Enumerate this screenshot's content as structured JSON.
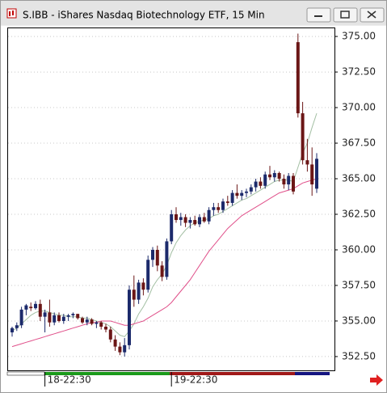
{
  "chart_data": {
    "type": "candlestick",
    "title": "S.IBB - iShares Nasdaq Biotechnology ETF, 15 Min",
    "categories": [
      null,
      null,
      null,
      null,
      null,
      null,
      null,
      "18-22:30",
      null,
      null,
      null,
      null,
      null,
      null,
      null,
      null,
      null,
      null,
      null,
      null,
      null,
      null,
      null,
      null,
      null,
      null,
      null,
      null,
      null,
      null,
      null,
      null,
      null,
      null,
      "19-22:30",
      null,
      null,
      null,
      null,
      null,
      null,
      null,
      null,
      null,
      null,
      null,
      null,
      null,
      null,
      null,
      null,
      null,
      null,
      null,
      null,
      null,
      null,
      null,
      null,
      null,
      null,
      null,
      null,
      null,
      null,
      null
    ],
    "open": [
      354.2,
      354.5,
      354.7,
      355.8,
      356.0,
      355.9,
      356.2,
      355.3,
      355.6,
      354.9,
      355.4,
      355.0,
      355.3,
      355.4,
      355.5,
      355.2,
      354.9,
      355.1,
      354.8,
      354.9,
      354.6,
      354.4,
      353.7,
      353.2,
      352.8,
      353.3,
      357.2,
      356.5,
      357.7,
      357.2,
      359.3,
      360.0,
      358.9,
      358.1,
      360.6,
      362.5,
      362.1,
      362.3,
      361.9,
      362.1,
      361.8,
      362.3,
      362.0,
      362.8,
      363.0,
      362.8,
      363.4,
      363.3,
      364.0,
      363.8,
      364.0,
      364.1,
      364.4,
      364.8,
      364.5,
      365.3,
      365.1,
      365.4,
      365.0,
      364.6,
      365.2,
      374.6,
      369.6,
      366.3,
      366.0,
      364.3
    ],
    "high": [
      354.6,
      354.9,
      356.0,
      356.2,
      356.3,
      356.4,
      356.5,
      355.8,
      356.5,
      355.6,
      355.6,
      355.5,
      355.5,
      355.6,
      355.5,
      355.3,
      355.3,
      355.2,
      355.0,
      355.0,
      354.8,
      354.6,
      354.0,
      353.5,
      353.8,
      357.5,
      358.2,
      357.9,
      358.0,
      359.6,
      360.2,
      360.3,
      359.2,
      360.8,
      362.8,
      363.0,
      362.6,
      362.5,
      362.3,
      362.4,
      362.5,
      362.6,
      363.0,
      363.3,
      363.3,
      363.6,
      363.8,
      364.2,
      364.6,
      364.2,
      364.3,
      364.6,
      365.0,
      365.1,
      365.5,
      365.9,
      365.6,
      365.5,
      365.3,
      365.4,
      365.4,
      375.2,
      370.4,
      367.8,
      367.2,
      366.8
    ],
    "low": [
      353.9,
      354.3,
      354.5,
      355.4,
      355.7,
      355.8,
      355.0,
      354.2,
      354.6,
      354.7,
      354.9,
      354.8,
      355.0,
      355.2,
      355.1,
      354.8,
      354.7,
      354.7,
      354.5,
      354.4,
      354.2,
      353.5,
      352.9,
      352.6,
      352.5,
      353.0,
      356.0,
      356.2,
      356.8,
      357.0,
      358.8,
      358.5,
      357.8,
      357.9,
      360.4,
      361.9,
      361.7,
      361.6,
      361.5,
      361.7,
      361.6,
      361.9,
      361.8,
      362.4,
      362.6,
      362.6,
      363.1,
      363.1,
      363.6,
      363.5,
      363.7,
      363.9,
      364.1,
      364.3,
      364.3,
      364.9,
      364.8,
      364.8,
      364.3,
      364.2,
      363.9,
      369.3,
      366.0,
      365.5,
      363.8,
      364.0
    ],
    "close": [
      354.5,
      354.7,
      355.8,
      356.1,
      355.9,
      356.2,
      355.3,
      355.6,
      354.9,
      355.4,
      355.0,
      355.3,
      355.4,
      355.5,
      355.2,
      354.9,
      355.1,
      354.8,
      354.9,
      354.6,
      354.4,
      353.7,
      353.2,
      352.8,
      353.3,
      357.2,
      356.5,
      357.7,
      357.2,
      359.3,
      360.0,
      358.9,
      358.1,
      360.6,
      362.5,
      362.1,
      362.3,
      361.9,
      362.1,
      361.8,
      362.3,
      362.0,
      362.8,
      363.0,
      362.8,
      363.4,
      363.3,
      364.0,
      363.8,
      364.0,
      364.1,
      364.4,
      364.8,
      364.5,
      365.3,
      365.1,
      365.4,
      365.0,
      364.6,
      365.2,
      364.1,
      369.6,
      366.3,
      366.0,
      364.6,
      366.4
    ],
    "up_color": "#1c2a6b",
    "down_color": "#6b1616",
    "lines": [
      {
        "color": "#a3bfa3",
        "values": [
          354.3,
          354.5,
          354.8,
          355.1,
          355.4,
          355.6,
          355.7,
          355.7,
          355.6,
          355.5,
          355.4,
          355.4,
          355.3,
          355.3,
          355.3,
          355.2,
          355.2,
          355.1,
          355.0,
          354.9,
          354.8,
          354.6,
          354.3,
          354.0,
          353.9,
          354.3,
          354.8,
          355.5,
          356.0,
          356.6,
          357.4,
          357.9,
          358.3,
          358.9,
          359.8,
          360.5,
          361.0,
          361.4,
          361.7,
          361.9,
          362.0,
          362.1,
          362.2,
          362.4,
          362.5,
          362.7,
          362.9,
          363.1,
          363.3,
          363.5,
          363.6,
          363.8,
          364.0,
          364.2,
          364.4,
          364.6,
          364.8,
          364.9,
          364.9,
          364.9,
          364.8,
          365.8,
          366.8,
          367.5,
          368.6,
          369.6
        ]
      },
      {
        "color": "#e0508a",
        "values": [
          353.2,
          353.3,
          353.4,
          353.5,
          353.6,
          353.7,
          353.8,
          353.9,
          354.0,
          354.1,
          354.2,
          354.3,
          354.4,
          354.5,
          354.6,
          354.7,
          354.8,
          354.9,
          354.9,
          355.0,
          355.0,
          355.0,
          354.9,
          354.8,
          354.7,
          354.7,
          354.8,
          354.9,
          355.0,
          355.2,
          355.4,
          355.6,
          355.8,
          356.0,
          356.3,
          356.7,
          357.1,
          357.5,
          357.9,
          358.4,
          358.9,
          359.4,
          359.9,
          360.3,
          360.7,
          361.1,
          361.5,
          361.8,
          362.1,
          362.4,
          362.6,
          362.8,
          363.0,
          363.2,
          363.4,
          363.6,
          363.8,
          364.0,
          364.1,
          364.2,
          364.3,
          364.5,
          364.7,
          364.8,
          364.9,
          365.0
        ]
      }
    ],
    "ylim": [
      351.53,
      375.63
    ],
    "yticks": [
      {
        "value": 352.5,
        "label": "352.50"
      },
      {
        "value": 355,
        "label": "355.00"
      },
      {
        "value": 357.5,
        "label": "357.50"
      },
      {
        "value": 360,
        "label": "360.00"
      },
      {
        "value": 362.5,
        "label": "362.50"
      },
      {
        "value": 365,
        "label": "365.00"
      },
      {
        "value": 367.5,
        "label": "367.50"
      },
      {
        "value": 370,
        "label": "370.00"
      },
      {
        "value": 372.5,
        "label": "372.50"
      },
      {
        "value": 375,
        "label": "375.00"
      }
    ],
    "grid": true
  }
}
